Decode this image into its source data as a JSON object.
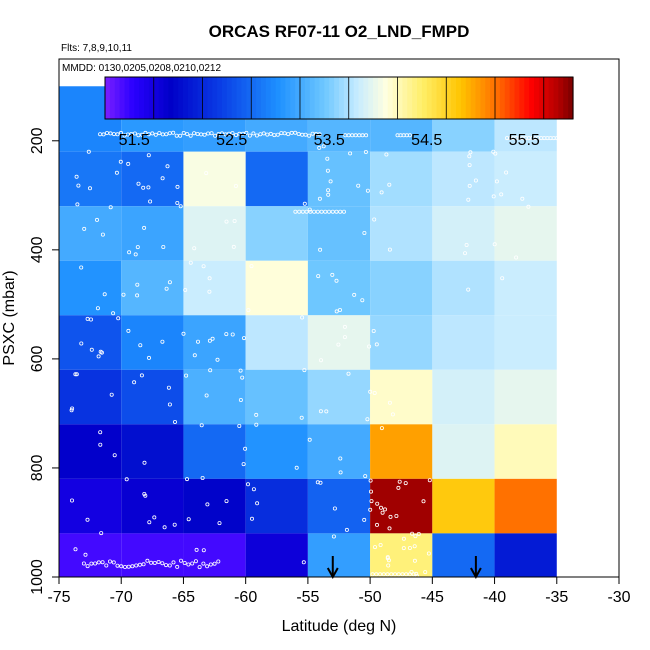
{
  "chart_data": {
    "type": "heatmap",
    "title": "ORCAS RF07-11 O2_LND_FMPD",
    "subtitle_flights": "Flts: 7,8,9,10,11",
    "subtitle_dates": "MMDD: 0130,0205,0208,0210,0212",
    "xlabel": "Latitude (deg N)",
    "ylabel": "PSXC (mbar)",
    "xlim": [
      -75,
      -30
    ],
    "ylim": [
      1000,
      50
    ],
    "x_ticks": [
      -75,
      -70,
      -65,
      -60,
      -55,
      -50,
      -45,
      -40,
      -35,
      -30
    ],
    "x_tick_labels": [
      "-75",
      "-70",
      "-65",
      "-60",
      "-55",
      "-50",
      "-45",
      "-40",
      "-35",
      "-30"
    ],
    "y_ticks": [
      200,
      400,
      600,
      800,
      1000
    ],
    "y_tick_labels": [
      "200",
      "400",
      "600",
      "800",
      "1000"
    ],
    "colorbar": {
      "range": [
        51.2,
        56.0
      ],
      "ticks": [
        51.5,
        52.5,
        53.5,
        54.5,
        55.5
      ],
      "tick_labels": [
        "51.5",
        "52.5",
        "53.5",
        "54.5",
        "55.5"
      ]
    },
    "x_bin_edges": [
      -75,
      -70,
      -65,
      -60,
      -55,
      -50,
      -45,
      -40,
      -35
    ],
    "y_bin_edges": [
      100,
      220,
      320,
      420,
      520,
      620,
      720,
      820,
      920,
      1000
    ],
    "cells": [
      [
        52.9,
        53.05,
        53.1,
        53.2,
        53.3,
        53.3,
        53.55,
        53.75
      ],
      [
        52.8,
        52.7,
        54.05,
        52.7,
        53.4,
        53.65,
        53.75,
        53.8
      ],
      [
        53.2,
        53.15,
        53.9,
        53.55,
        53.4,
        53.7,
        53.85,
        53.95
      ],
      [
        53.0,
        53.3,
        53.8,
        54.1,
        53.45,
        53.55,
        53.7,
        53.8
      ],
      [
        52.55,
        52.9,
        53.15,
        53.75,
        53.95,
        53.6,
        53.75,
        53.8
      ],
      [
        52.3,
        52.5,
        53.25,
        53.4,
        53.6,
        54.15,
        53.85,
        53.95
      ],
      [
        51.85,
        52.0,
        52.7,
        53.0,
        53.2,
        55.0,
        53.9,
        54.2
      ],
      [
        51.7,
        51.8,
        51.9,
        52.25,
        52.65,
        55.9,
        54.8,
        55.2
      ],
      [
        51.4,
        51.4,
        51.4,
        51.75,
        53.1,
        54.4,
        52.7,
        52.1
      ]
    ],
    "arrows_latitude": [
      -53,
      -41.5
    ]
  }
}
